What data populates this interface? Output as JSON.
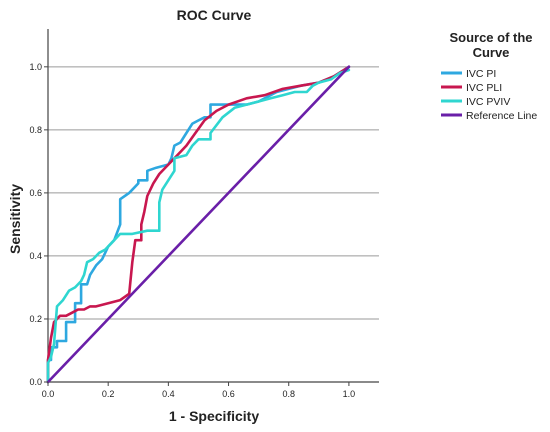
{
  "chart_data": {
    "type": "line",
    "title": "ROC Curve",
    "xlabel": "1 - Specificity",
    "ylabel": "Sensitivity",
    "xlim": [
      0,
      1.1
    ],
    "ylim": [
      0,
      1.12
    ],
    "xticks": [
      "0.0",
      "0.2",
      "0.4",
      "0.6",
      "0.8",
      "1.0"
    ],
    "yticks": [
      "0.0",
      "0.2",
      "0.4",
      "0.6",
      "0.8",
      "1.0"
    ],
    "grid": "horizontal",
    "legend": {
      "title_lines": [
        "Source of the",
        "Curve"
      ],
      "placement": "right"
    },
    "colors": {
      "ivc_pi": "#2ea8e0",
      "ivc_pli": "#c8174f",
      "ivc_pviv": "#2fd6d0",
      "reference": "#6a1fa8"
    },
    "series": [
      {
        "name": "IVC PI",
        "color": "#2ea8e0",
        "x": [
          0.0,
          0.0,
          0.01,
          0.01,
          0.03,
          0.03,
          0.06,
          0.06,
          0.09,
          0.09,
          0.11,
          0.11,
          0.13,
          0.14,
          0.16,
          0.18,
          0.2,
          0.22,
          0.24,
          0.24,
          0.27,
          0.28,
          0.3,
          0.3,
          0.33,
          0.33,
          0.36,
          0.4,
          0.41,
          0.42,
          0.44,
          0.46,
          0.48,
          0.5,
          0.52,
          0.54,
          0.54,
          0.58,
          0.62,
          0.66,
          0.7,
          0.76,
          0.8,
          0.84,
          0.9,
          0.95,
          1.0
        ],
        "y": [
          0.0,
          0.07,
          0.07,
          0.11,
          0.11,
          0.13,
          0.13,
          0.19,
          0.19,
          0.25,
          0.25,
          0.31,
          0.31,
          0.34,
          0.37,
          0.39,
          0.43,
          0.45,
          0.5,
          0.58,
          0.6,
          0.61,
          0.63,
          0.64,
          0.64,
          0.67,
          0.68,
          0.69,
          0.71,
          0.75,
          0.76,
          0.79,
          0.82,
          0.83,
          0.84,
          0.84,
          0.88,
          0.88,
          0.88,
          0.88,
          0.89,
          0.92,
          0.93,
          0.94,
          0.95,
          0.97,
          1.0
        ]
      },
      {
        "name": "IVC PLI",
        "color": "#c8174f",
        "x": [
          0.0,
          0.0,
          0.01,
          0.02,
          0.04,
          0.06,
          0.08,
          0.1,
          0.12,
          0.14,
          0.16,
          0.2,
          0.24,
          0.27,
          0.28,
          0.29,
          0.3,
          0.31,
          0.31,
          0.32,
          0.33,
          0.35,
          0.37,
          0.4,
          0.43,
          0.46,
          0.49,
          0.52,
          0.56,
          0.6,
          0.66,
          0.72,
          0.78,
          0.84,
          0.9,
          0.95,
          1.0
        ],
        "y": [
          0.0,
          0.07,
          0.14,
          0.19,
          0.21,
          0.21,
          0.22,
          0.23,
          0.23,
          0.24,
          0.24,
          0.25,
          0.26,
          0.28,
          0.38,
          0.45,
          0.45,
          0.45,
          0.5,
          0.54,
          0.59,
          0.63,
          0.66,
          0.69,
          0.72,
          0.75,
          0.79,
          0.83,
          0.86,
          0.88,
          0.9,
          0.91,
          0.93,
          0.94,
          0.95,
          0.97,
          1.0
        ]
      },
      {
        "name": "IVC PVIV",
        "color": "#2fd6d0",
        "x": [
          0.0,
          0.0,
          0.01,
          0.02,
          0.03,
          0.05,
          0.07,
          0.09,
          0.11,
          0.12,
          0.13,
          0.15,
          0.17,
          0.19,
          0.21,
          0.23,
          0.24,
          0.28,
          0.33,
          0.37,
          0.37,
          0.38,
          0.42,
          0.42,
          0.46,
          0.48,
          0.5,
          0.54,
          0.54,
          0.58,
          0.62,
          0.66,
          0.7,
          0.74,
          0.78,
          0.82,
          0.86,
          0.88,
          0.9,
          0.94,
          0.97,
          1.0
        ],
        "y": [
          0.0,
          0.06,
          0.08,
          0.12,
          0.24,
          0.26,
          0.29,
          0.3,
          0.32,
          0.34,
          0.38,
          0.39,
          0.41,
          0.42,
          0.44,
          0.46,
          0.47,
          0.47,
          0.48,
          0.48,
          0.57,
          0.61,
          0.67,
          0.71,
          0.72,
          0.75,
          0.77,
          0.77,
          0.79,
          0.84,
          0.87,
          0.88,
          0.89,
          0.9,
          0.91,
          0.92,
          0.92,
          0.94,
          0.95,
          0.96,
          0.98,
          0.99
        ]
      },
      {
        "name": "Reference Line",
        "color": "#6a1fa8",
        "x": [
          0.0,
          1.0
        ],
        "y": [
          0.0,
          1.0
        ]
      }
    ]
  }
}
